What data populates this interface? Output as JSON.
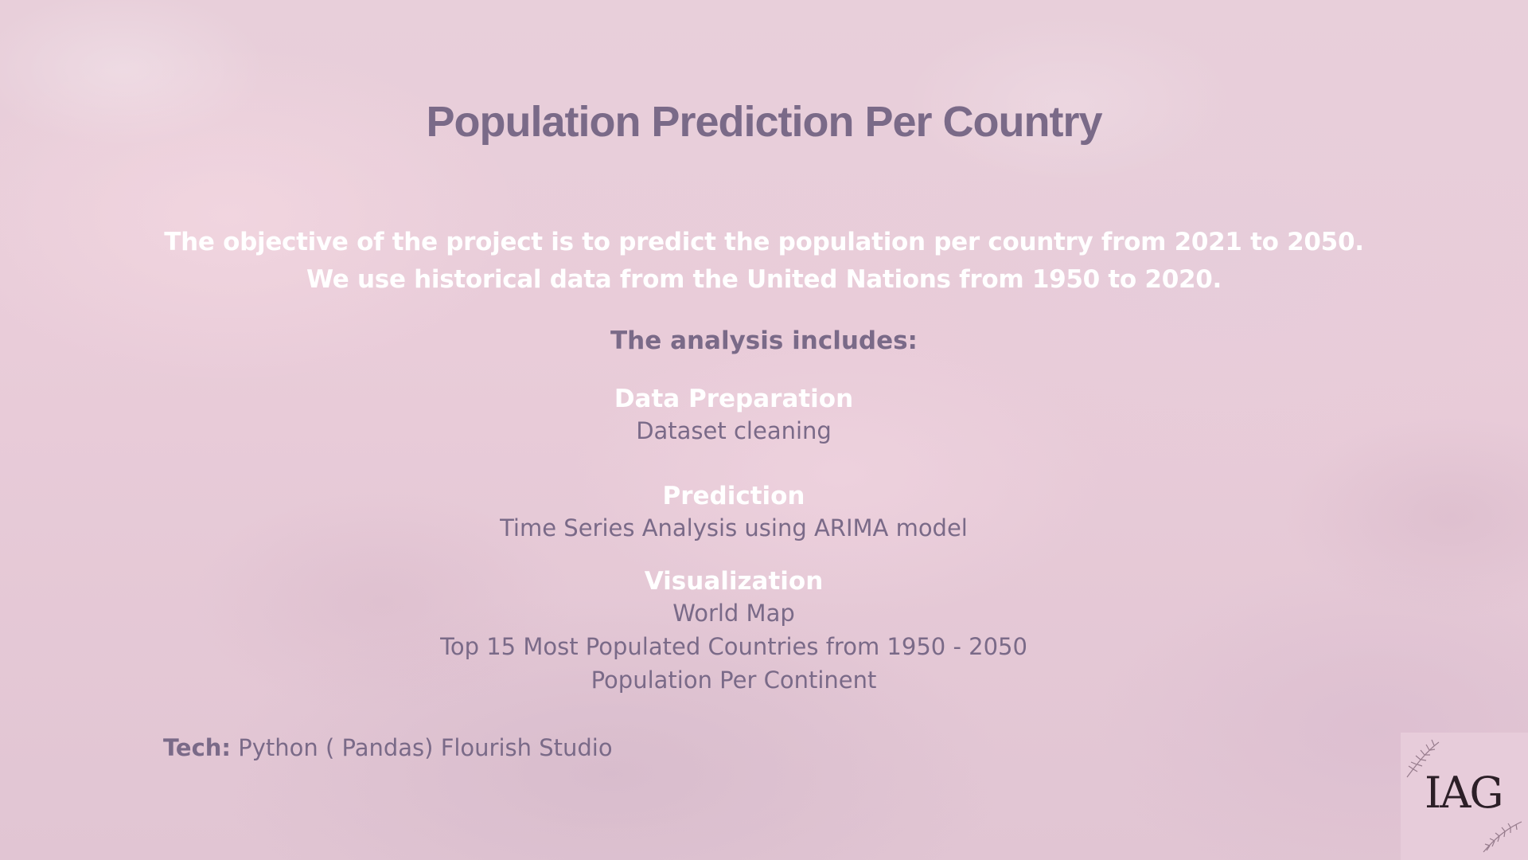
{
  "title": "Population Prediction Per Country",
  "objective": {
    "line1": "The objective of the project is to predict the population per country from 2021 to 2050.",
    "line2": "We use historical data from the United Nations from 1950 to 2020."
  },
  "analysis_heading": "The analysis includes:",
  "sections": {
    "data_preparation": {
      "heading": "Data Preparation",
      "items": [
        "Dataset cleaning"
      ]
    },
    "prediction": {
      "heading": "Prediction",
      "items": [
        "Time Series Analysis using ARIMA model"
      ]
    },
    "visualization": {
      "heading": "Visualization",
      "items": [
        "World Map",
        "Top 15 Most Populated Countries from 1950 - 2050",
        "Population Per Continent"
      ]
    }
  },
  "tech": {
    "label": "Tech:",
    "value": " Python ( Pandas) Flourish Studio"
  },
  "logo": {
    "text": "IAG",
    "icon": "floral-branch-icon"
  },
  "colors": {
    "title": "#7a6a88",
    "highlight": "#ffffff",
    "background": "#e8cfda",
    "logo_text": "#2c1f27"
  }
}
